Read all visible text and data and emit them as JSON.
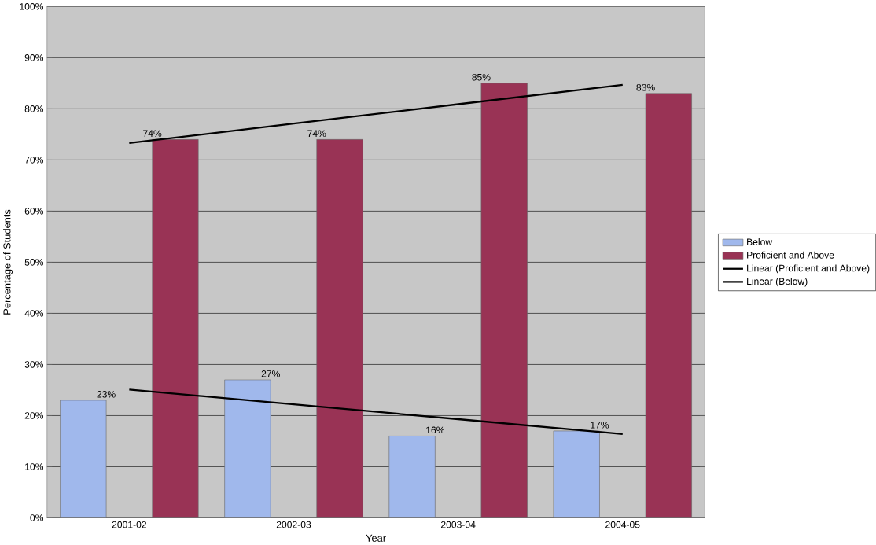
{
  "chart_data": {
    "type": "bar",
    "xlabel": "Year",
    "ylabel": "Percentage of Students",
    "categories": [
      "2001-02",
      "2002-03",
      "2003-04",
      "2004-05"
    ],
    "series": [
      {
        "name": "Below",
        "color": "#a0b8ec",
        "values": [
          23,
          27,
          16,
          17
        ],
        "value_labels": [
          "23%",
          "27%",
          "16%",
          "17%"
        ]
      },
      {
        "name": "Proficient and Above",
        "color": "#993355",
        "values": [
          74,
          74,
          85,
          83
        ],
        "value_labels": [
          "74%",
          "74%",
          "85%",
          "83%"
        ]
      },
      {
        "name": "Linear (Proficient and Above)",
        "type": "line",
        "color": "#000000",
        "values": [
          73.3,
          77.1,
          80.9,
          84.7
        ]
      },
      {
        "name": "Linear (Below)",
        "type": "line",
        "color": "#000000",
        "values": [
          25.1,
          22.2,
          19.3,
          16.4
        ]
      }
    ],
    "ylim": [
      0,
      100
    ],
    "yticks": [
      {
        "value": 0,
        "label": "0%"
      },
      {
        "value": 10,
        "label": "10%"
      },
      {
        "value": 20,
        "label": "20%"
      },
      {
        "value": 30,
        "label": "30%"
      },
      {
        "value": 40,
        "label": "40%"
      },
      {
        "value": 50,
        "label": "50%"
      },
      {
        "value": 60,
        "label": "60%"
      },
      {
        "value": 70,
        "label": "70%"
      },
      {
        "value": 80,
        "label": "80%"
      },
      {
        "value": 90,
        "label": "90%"
      },
      {
        "value": 100,
        "label": "100%"
      }
    ],
    "grid": "y",
    "legend": "right",
    "marker": "none"
  }
}
